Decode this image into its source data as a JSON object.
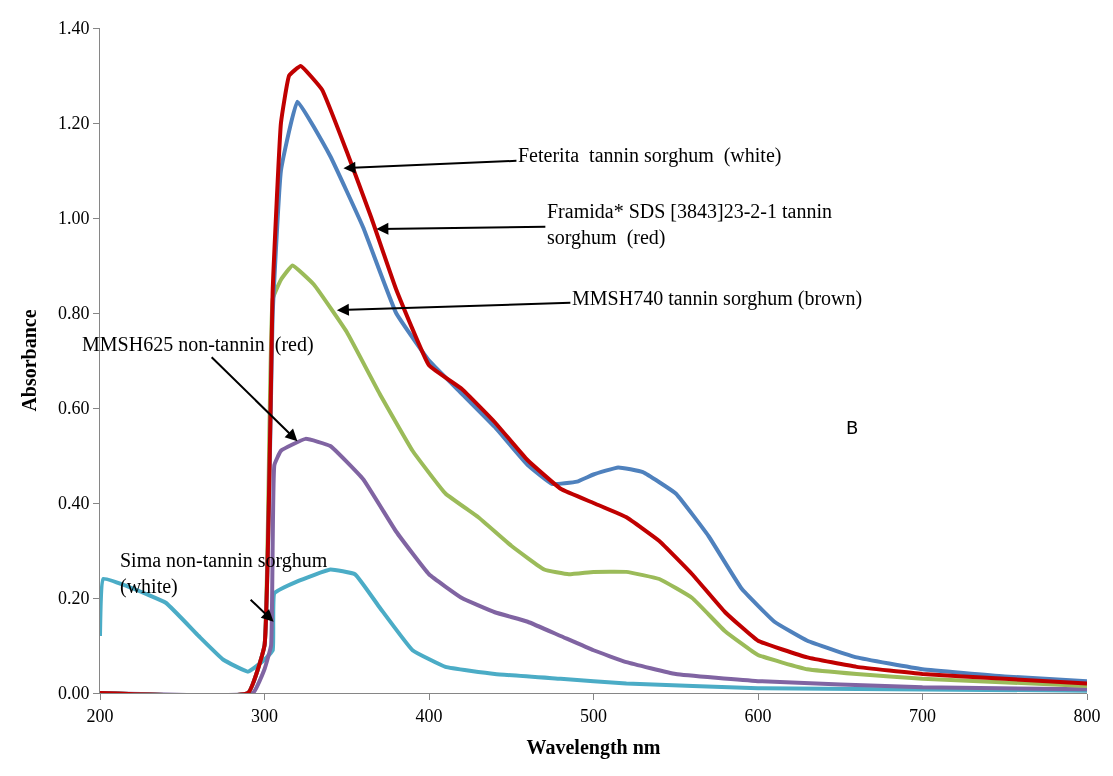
{
  "chart_data": {
    "type": "line",
    "xlabel": "Wavelength nm",
    "ylabel": "Absorbance",
    "xlim": [
      200,
      800
    ],
    "xticks": [
      200,
      300,
      400,
      500,
      600,
      700,
      800
    ],
    "ylim": [
      0,
      1.4
    ],
    "yticks": [
      {
        "value": 0,
        "label": "0.00"
      },
      {
        "value": 0.2,
        "label": "0.20"
      },
      {
        "value": 0.4,
        "label": "0.40"
      },
      {
        "value": 0.6,
        "label": "0.60"
      },
      {
        "value": 0.8,
        "label": "0.80"
      },
      {
        "value": 1.0,
        "label": "1.00"
      },
      {
        "value": 1.2,
        "label": "1.20"
      },
      {
        "value": 1.4,
        "label": "1.40"
      }
    ],
    "marker": "none",
    "line_style": "solid",
    "series": [
      {
        "color": "#4bacc6",
        "x": [
          200,
          202,
          220,
          240,
          260,
          275,
          290,
          300,
          305,
          306,
          320,
          340,
          355,
          370,
          390,
          410,
          440,
          480,
          520,
          600,
          800
        ],
        "values": [
          0.12,
          0.24,
          0.22,
          0.19,
          0.12,
          0.07,
          0.045,
          0.07,
          0.09,
          0.21,
          0.235,
          0.26,
          0.25,
          0.18,
          0.09,
          0.055,
          0.04,
          0.03,
          0.02,
          0.01,
          0.005
        ]
      },
      {
        "color": "#8064a2",
        "x": [
          200,
          293,
          300,
          304,
          306,
          310,
          325,
          340,
          360,
          380,
          400,
          420,
          440,
          460,
          480,
          500,
          520,
          550,
          600,
          700,
          800
        ],
        "values": [
          0,
          0,
          0.05,
          0.1,
          0.48,
          0.51,
          0.535,
          0.52,
          0.45,
          0.34,
          0.25,
          0.2,
          0.17,
          0.15,
          0.12,
          0.09,
          0.065,
          0.04,
          0.025,
          0.012,
          0.008
        ]
      },
      {
        "color": "#9bbb59",
        "x": [
          200,
          290,
          300,
          305,
          310,
          317,
          330,
          350,
          370,
          390,
          410,
          430,
          450,
          470,
          485,
          500,
          520,
          540,
          560,
          580,
          600,
          630,
          660,
          700,
          800
        ],
        "values": [
          0,
          0,
          0.1,
          0.83,
          0.87,
          0.9,
          0.86,
          0.76,
          0.63,
          0.51,
          0.42,
          0.37,
          0.31,
          0.26,
          0.25,
          0.255,
          0.255,
          0.24,
          0.2,
          0.13,
          0.08,
          0.05,
          0.04,
          0.03,
          0.015
        ]
      },
      {
        "color": "#4f81bd",
        "x": [
          200,
          290,
          300,
          305,
          310,
          320,
          340,
          360,
          380,
          400,
          420,
          440,
          460,
          475,
          490,
          500,
          515,
          530,
          550,
          570,
          590,
          610,
          630,
          660,
          700,
          750,
          800
        ],
        "values": [
          0,
          0,
          0.1,
          0.8,
          1.1,
          1.245,
          1.13,
          0.98,
          0.8,
          0.7,
          0.63,
          0.56,
          0.48,
          0.44,
          0.445,
          0.46,
          0.475,
          0.465,
          0.42,
          0.33,
          0.22,
          0.15,
          0.11,
          0.075,
          0.05,
          0.035,
          0.025
        ]
      },
      {
        "color": "#c00000",
        "x": [
          200,
          290,
          300,
          305,
          310,
          315,
          322,
          335,
          350,
          365,
          380,
          400,
          420,
          440,
          460,
          480,
          500,
          520,
          540,
          560,
          580,
          600,
          630,
          660,
          700,
          750,
          800
        ],
        "values": [
          0,
          0,
          0.1,
          0.85,
          1.2,
          1.3,
          1.32,
          1.27,
          1.14,
          1.0,
          0.85,
          0.69,
          0.64,
          0.57,
          0.49,
          0.43,
          0.4,
          0.37,
          0.32,
          0.25,
          0.17,
          0.11,
          0.075,
          0.055,
          0.04,
          0.03,
          0.02
        ]
      }
    ],
    "annotations": [
      {
        "text": "Feterita  tannin sorghum  (white)",
        "x": 348,
        "y": 1.105
      },
      {
        "text": "Framida* SDS [3843]23-2-1 tannin\nsorghum  (red)",
        "x": 368,
        "y": 0.977
      },
      {
        "text": "MMSH740 tannin sorghum (brown)",
        "x": 344,
        "y": 0.806
      },
      {
        "text": "MMSH625 non-tannin  (red)",
        "x": 320,
        "y": 0.53
      },
      {
        "text": "Sima non-tannin sorghum\n(white)",
        "x": 305.5,
        "y": 0.15
      },
      "B"
    ]
  }
}
